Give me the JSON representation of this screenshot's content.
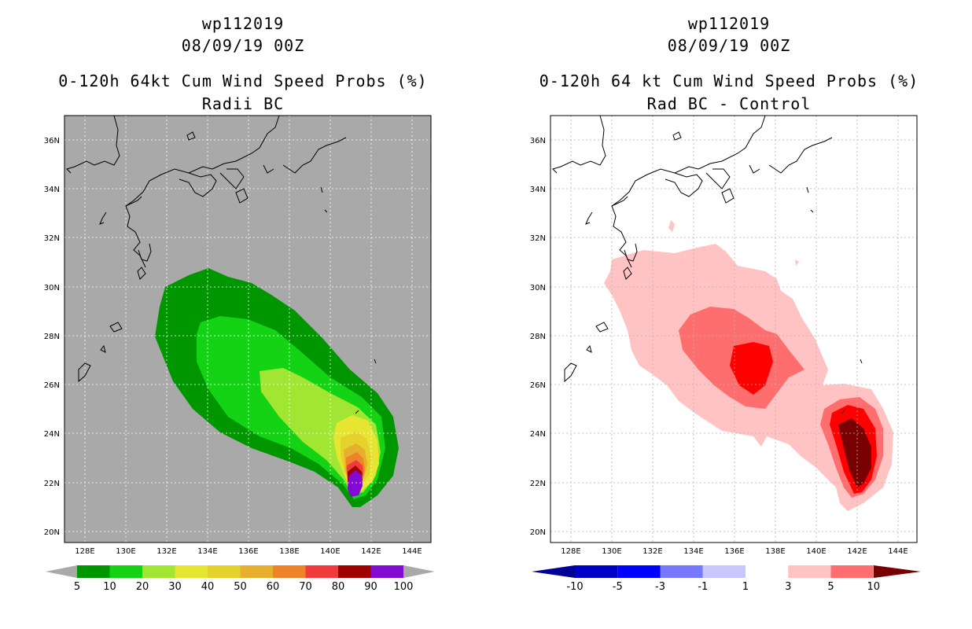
{
  "panels": [
    {
      "storm_id": "wp112019",
      "datetime": "08/09/19 00Z",
      "product": "0-120h 64kt Cum Wind Speed Probs (%)",
      "subtitle": "Radii BC",
      "background": "#a9a9a9",
      "colorbar": {
        "labels": [
          "5",
          "10",
          "20",
          "30",
          "40",
          "50",
          "60",
          "70",
          "80",
          "90",
          "100"
        ],
        "colors": [
          "#009600",
          "#14d214",
          "#a0e632",
          "#e6e632",
          "#e6d22d",
          "#e6af2d",
          "#f08228",
          "#f03c3c",
          "#a00000",
          "#820ad2"
        ],
        "end_color": "#a9a9a9"
      }
    },
    {
      "storm_id": "wp112019",
      "datetime": "08/09/19 00Z",
      "product": "0-120h 64 kt Cum Wind Speed Probs (%)",
      "subtitle": "Rad BC - Control",
      "background": "#ffffff",
      "colorbar": {
        "labels": [
          "-10",
          "-5",
          "-3",
          "-1",
          "1",
          "3",
          "5",
          "10"
        ],
        "colors": [
          "#0000c8",
          "#0000ff",
          "#7878ff",
          "#c8c8ff",
          "#ffffff",
          "#ffc3c3",
          "#ff6e6e",
          "#ff0000"
        ],
        "left_end_color": "#000096",
        "right_end_color": "#780000"
      }
    }
  ],
  "axes": {
    "lon_labels": [
      "128E",
      "130E",
      "132E",
      "134E",
      "136E",
      "138E",
      "140E",
      "142E",
      "144E"
    ],
    "lat_labels": [
      "20N",
      "22N",
      "24N",
      "26N",
      "28N",
      "30N",
      "32N",
      "34N",
      "36N"
    ],
    "lon_range": [
      127,
      145
    ],
    "lat_range": [
      19.6,
      37
    ]
  }
}
